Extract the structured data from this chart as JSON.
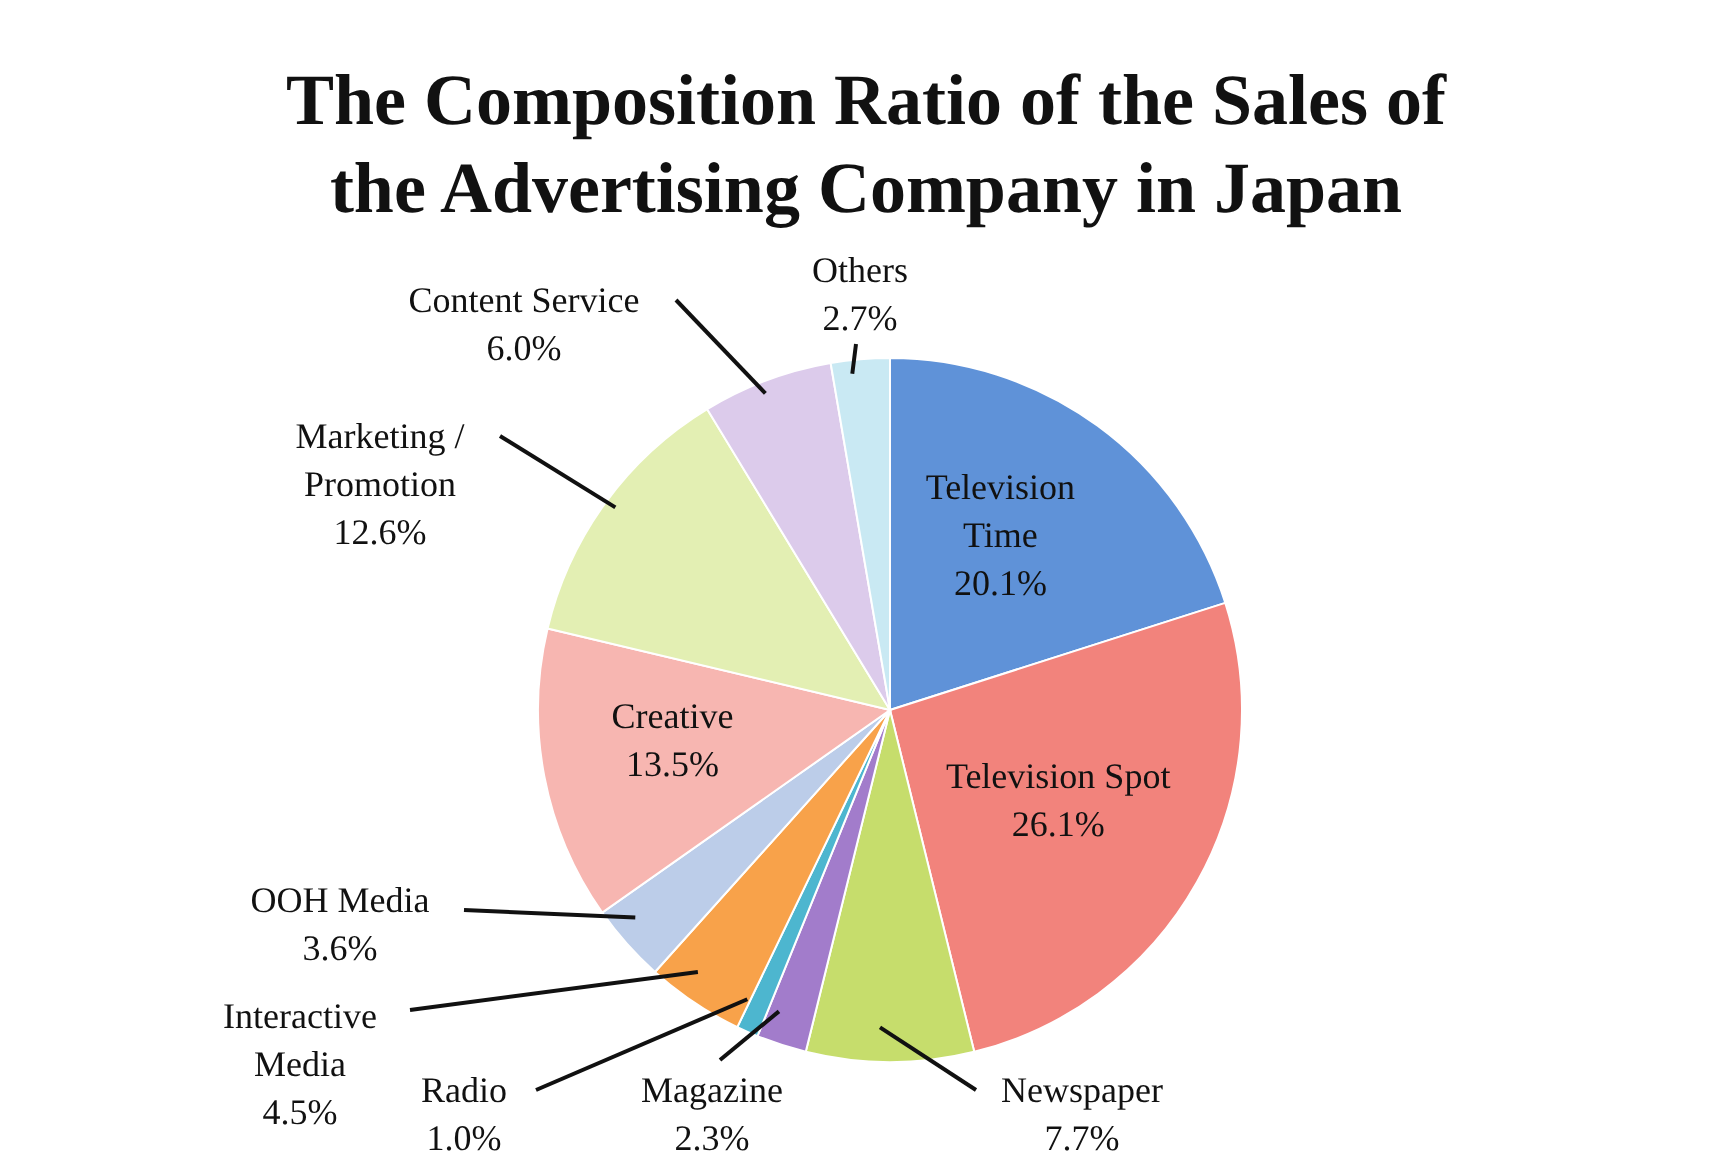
{
  "chart_data": {
    "type": "pie",
    "title": "The Composition Ratio of the Sales of the Advertising Company in Japan",
    "categories": [
      "Television Time",
      "Television Spot",
      "Newspaper",
      "Magazine",
      "Radio",
      "Interactive Media",
      "OOH Media",
      "Creative",
      "Marketing / Promotion",
      "Content Service",
      "Others"
    ],
    "values": [
      20.1,
      26.1,
      7.7,
      2.3,
      1.0,
      4.5,
      3.6,
      13.5,
      12.6,
      6.0,
      2.7
    ],
    "value_labels": [
      "20.1%",
      "26.1%",
      "7.7%",
      "2.3%",
      "1.0%",
      "4.5%",
      "3.6%",
      "13.5%",
      "12.6%",
      "6.0%",
      "2.7%"
    ],
    "colors": [
      "#5f92d8",
      "#f2837c",
      "#c6dd6c",
      "#a27ccb",
      "#4db6cf",
      "#f8a24a",
      "#bccde9",
      "#f7b6b1",
      "#e3efb3",
      "#dccbeb",
      "#c9e9f3"
    ],
    "legend": false
  }
}
